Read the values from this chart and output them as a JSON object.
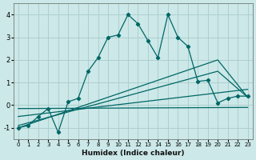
{
  "xlabel": "Humidex (Indice chaleur)",
  "bg_color": "#cce8e8",
  "grid_color": "#aacccc",
  "line_color": "#006666",
  "xlim": [
    -0.5,
    23.5
  ],
  "ylim": [
    -1.5,
    4.5
  ],
  "yticks": [
    -1,
    0,
    1,
    2,
    3,
    4
  ],
  "xticks": [
    0,
    1,
    2,
    3,
    4,
    5,
    6,
    7,
    8,
    9,
    10,
    11,
    12,
    13,
    14,
    15,
    16,
    17,
    18,
    19,
    20,
    21,
    22,
    23
  ],
  "lines": [
    {
      "x": [
        0,
        1,
        2,
        3,
        4,
        5,
        6,
        7,
        8,
        9,
        10,
        11,
        12,
        13,
        14,
        15,
        16,
        17,
        18,
        19,
        20,
        21,
        22,
        23
      ],
      "y": [
        -1.0,
        -0.9,
        -0.5,
        -0.15,
        -1.2,
        0.15,
        0.3,
        1.5,
        2.1,
        3.0,
        3.1,
        4.0,
        3.6,
        2.85,
        2.1,
        4.0,
        3.0,
        2.6,
        1.05,
        1.1,
        0.1,
        0.3,
        0.4,
        0.4
      ],
      "marker": "D",
      "markersize": 2.2,
      "linestyle": "-",
      "linewidth": 0.9
    },
    {
      "x": [
        0,
        23
      ],
      "y": [
        -0.15,
        -0.1
      ],
      "marker": null,
      "linestyle": "-",
      "linewidth": 0.9
    },
    {
      "x": [
        0,
        23
      ],
      "y": [
        -0.5,
        0.7
      ],
      "marker": null,
      "linestyle": "-",
      "linewidth": 0.9
    },
    {
      "x": [
        0,
        20,
        23
      ],
      "y": [
        -0.9,
        1.5,
        0.35
      ],
      "marker": null,
      "linestyle": "-",
      "linewidth": 0.9
    },
    {
      "x": [
        0,
        20,
        23
      ],
      "y": [
        -1.0,
        2.0,
        0.35
      ],
      "marker": null,
      "linestyle": "-",
      "linewidth": 0.9
    }
  ]
}
